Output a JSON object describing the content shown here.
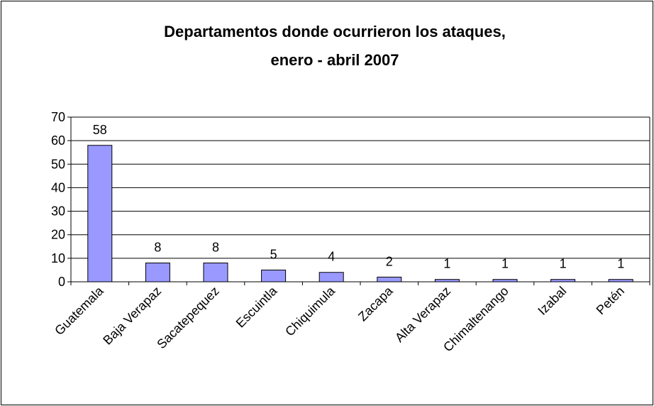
{
  "chart_data": {
    "type": "bar",
    "title": [
      "Departamentos donde ocurrieron los ataques,",
      "enero - abril 2007"
    ],
    "categories": [
      "Guatemala",
      "Baja Verapaz",
      "Sacatepequez",
      "Escuintla",
      "Chiquimula",
      "Zacapa",
      "Alta Verapaz",
      "Chimaltenango",
      "Izabal",
      "Petén"
    ],
    "values": [
      58,
      8,
      8,
      5,
      4,
      2,
      1,
      1,
      1,
      1
    ],
    "color": "#9999ff",
    "ylim": [
      0,
      70
    ],
    "yticks": [
      0,
      10,
      20,
      30,
      40,
      50,
      60,
      70
    ],
    "grid": true
  }
}
